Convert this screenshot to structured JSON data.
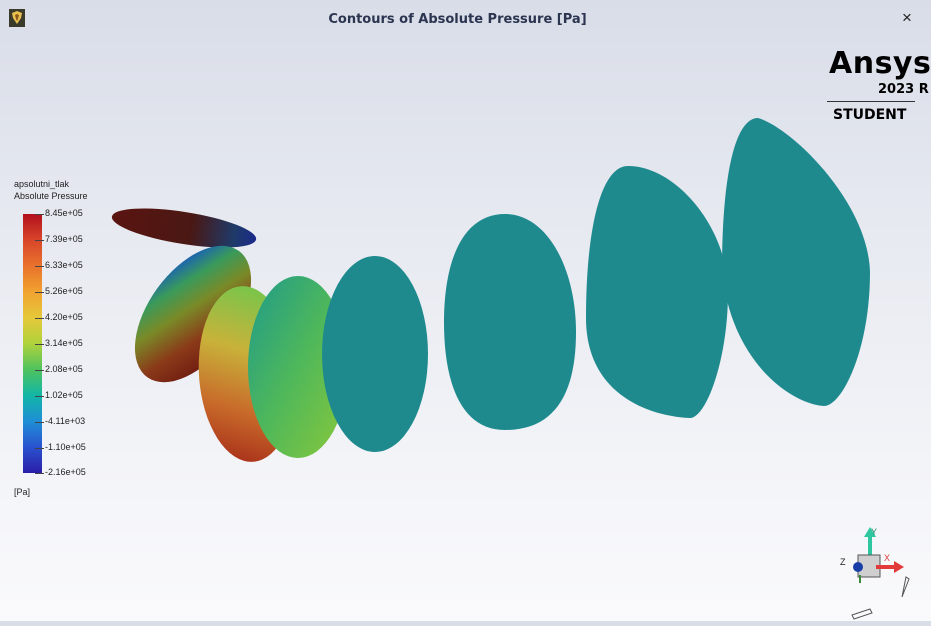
{
  "window": {
    "title": "Contours of Absolute Pressure [Pa]",
    "close_label": "×"
  },
  "brand": {
    "name": "Ansys",
    "version": "2023 R",
    "edition": "STUDENT"
  },
  "legend": {
    "name": "apsolutni_tlak",
    "quantity": "Absolute Pressure",
    "unit": "[Pa]",
    "tick_labels": [
      "8.45e+05",
      "7.39e+05",
      "6.33e+05",
      "5.26e+05",
      "4.20e+05",
      "3.14e+05",
      "2.08e+05",
      "1.02e+05",
      "-4.11e+03",
      "-1.10e+05",
      "-2.16e+05"
    ],
    "colormap": [
      "#b1101c",
      "#d8452a",
      "#e9722c",
      "#f1a230",
      "#e6c83a",
      "#b0d23c",
      "#4fc35e",
      "#12b6a6",
      "#1f8fd6",
      "#2a52cf",
      "#2a1ea8"
    ]
  },
  "scene": {
    "uniform_surface_color": "#1e8a8e"
  },
  "triad": {
    "axes": [
      "X",
      "Y",
      "Z"
    ],
    "x_color": "#e23a3a",
    "y_color": "#2ec7a0",
    "z_color": "#1a3ea8"
  },
  "icons": {
    "app": "fluent-app-icon",
    "close": "close-icon",
    "triad": "axis-triad-icon"
  }
}
